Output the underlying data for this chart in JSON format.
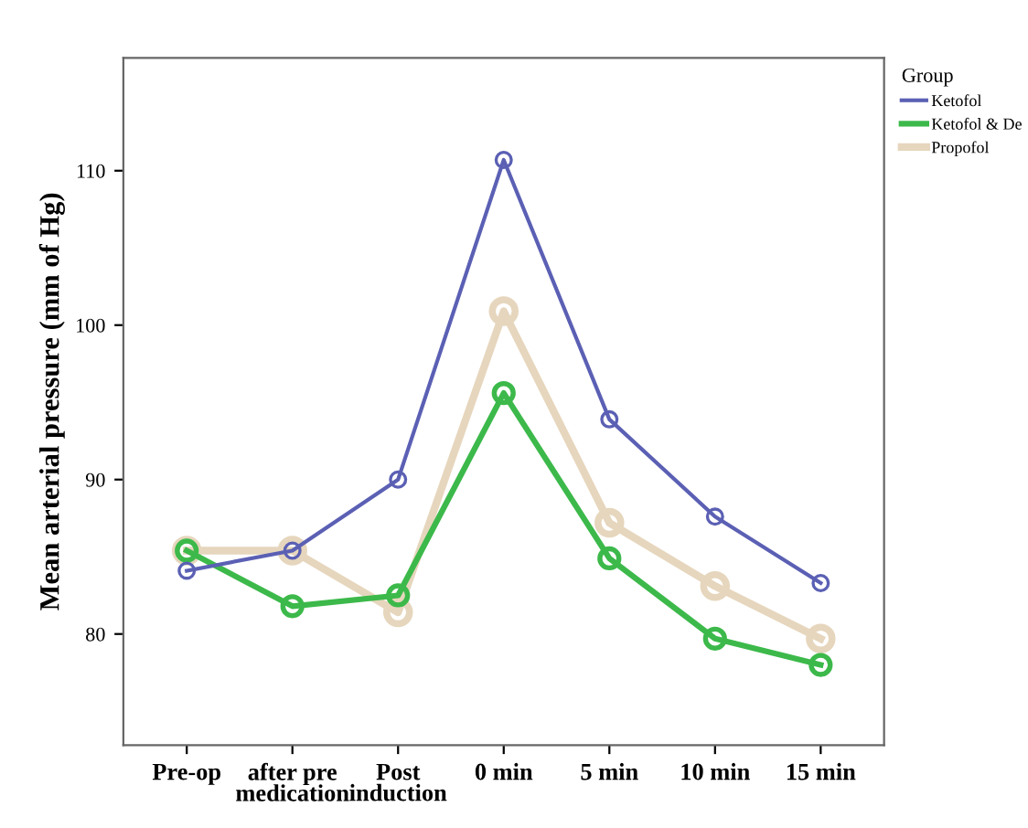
{
  "chart_data": {
    "type": "line",
    "ylabel": "Mean arterial pressure (mm of Hg)",
    "legend_title": "Group",
    "legend": "right",
    "marker": "circle",
    "line_style": "solid",
    "grid": false,
    "categories": [
      "Pre-op",
      "after pre\nmedication",
      "Post\ninduction",
      "0 min",
      "5 min",
      "10 min",
      "15 min"
    ],
    "ylim": [
      72.8,
      117.3
    ],
    "yticks": [
      80,
      90,
      100,
      110
    ],
    "series": [
      {
        "name": "Ketofol",
        "color": "#5b60b4",
        "values": [
          84.1,
          85.4,
          90.0,
          110.7,
          93.9,
          87.6,
          83.3
        ]
      },
      {
        "name": "Ketofol & De",
        "color": "#3cb94a",
        "values": [
          85.4,
          81.8,
          82.5,
          95.6,
          84.9,
          79.7,
          78.0
        ]
      },
      {
        "name": "Propofol",
        "color": "#e6d6bd",
        "values": [
          85.4,
          85.4,
          81.4,
          100.9,
          87.2,
          83.1,
          79.7
        ]
      }
    ]
  }
}
